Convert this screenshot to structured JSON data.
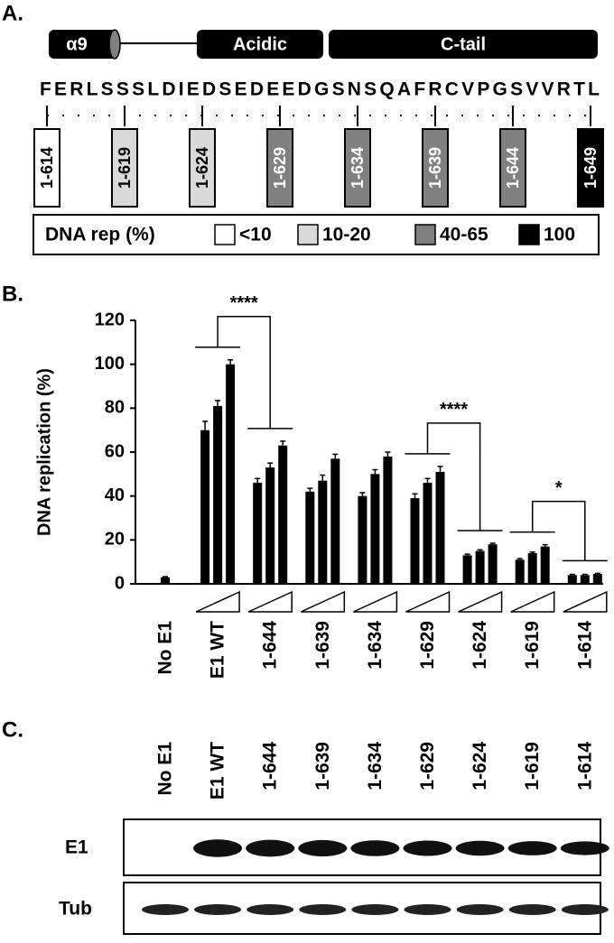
{
  "panel_a": {
    "label": "A.",
    "domains": [
      "α9",
      "Acidic",
      "C-tail"
    ],
    "sequence": "FERLSSSLDIEDSEDEEDGSNSQAFRCVPGSVVRTL",
    "constructs": [
      {
        "label": "1-614",
        "color": "#ffffff"
      },
      {
        "label": "1-619",
        "color": "#d9d9d9"
      },
      {
        "label": "1-624",
        "color": "#d9d9d9"
      },
      {
        "label": "1-629",
        "color": "#808080"
      },
      {
        "label": "1-634",
        "color": "#808080"
      },
      {
        "label": "1-639",
        "color": "#808080"
      },
      {
        "label": "1-644",
        "color": "#808080"
      },
      {
        "label": "1-649",
        "color": "#000000"
      }
    ],
    "legend_title": "DNA rep (%)",
    "legend": [
      {
        "label": "<10",
        "color": "#ffffff"
      },
      {
        "label": "10-20",
        "color": "#d9d9d9"
      },
      {
        "label": "40-65",
        "color": "#808080"
      },
      {
        "label": "100",
        "color": "#000000"
      }
    ]
  },
  "chart_data": {
    "type": "bar",
    "panel_label": "B.",
    "y_label": "DNA replication (%)",
    "categories": [
      "No E1",
      "E1 WT",
      "1-644",
      "1-639",
      "1-634",
      "1-629",
      "1-624",
      "1-619",
      "1-614"
    ],
    "series": [
      {
        "color": "#000000",
        "values": [
          null,
          70,
          46,
          42,
          40,
          39,
          13,
          11,
          4
        ],
        "errors": [
          null,
          4,
          2,
          1.5,
          1.5,
          2,
          0.5,
          0.5,
          0.3
        ]
      },
      {
        "color": "#000000",
        "values": [
          3,
          81,
          53,
          47,
          50,
          46,
          15,
          14,
          4
        ],
        "errors": [
          0.3,
          2.5,
          2,
          2.5,
          2,
          2,
          0.5,
          0.5,
          0.3
        ]
      },
      {
        "color": "#000000",
        "values": [
          null,
          100,
          63,
          57,
          58,
          51,
          18,
          17,
          4.5
        ],
        "errors": [
          null,
          2,
          2,
          2,
          2,
          2.5,
          0.5,
          0.8,
          0.3
        ]
      }
    ],
    "ylim": [
      0,
      120
    ],
    "yticks": [
      0,
      20,
      40,
      60,
      80,
      100,
      120
    ],
    "annotations": [
      {
        "text": "****",
        "groups": [
          1,
          2
        ]
      },
      {
        "text": "****",
        "groups": [
          5,
          6
        ]
      },
      {
        "text": "*",
        "groups": [
          7,
          8
        ]
      }
    ]
  },
  "panel_c": {
    "label": "C.",
    "lanes": [
      "No E1",
      "E1 WT",
      "1-644",
      "1-639",
      "1-634",
      "1-629",
      "1-624",
      "1-619",
      "1-614"
    ],
    "blots": [
      "E1",
      "Tub"
    ]
  }
}
